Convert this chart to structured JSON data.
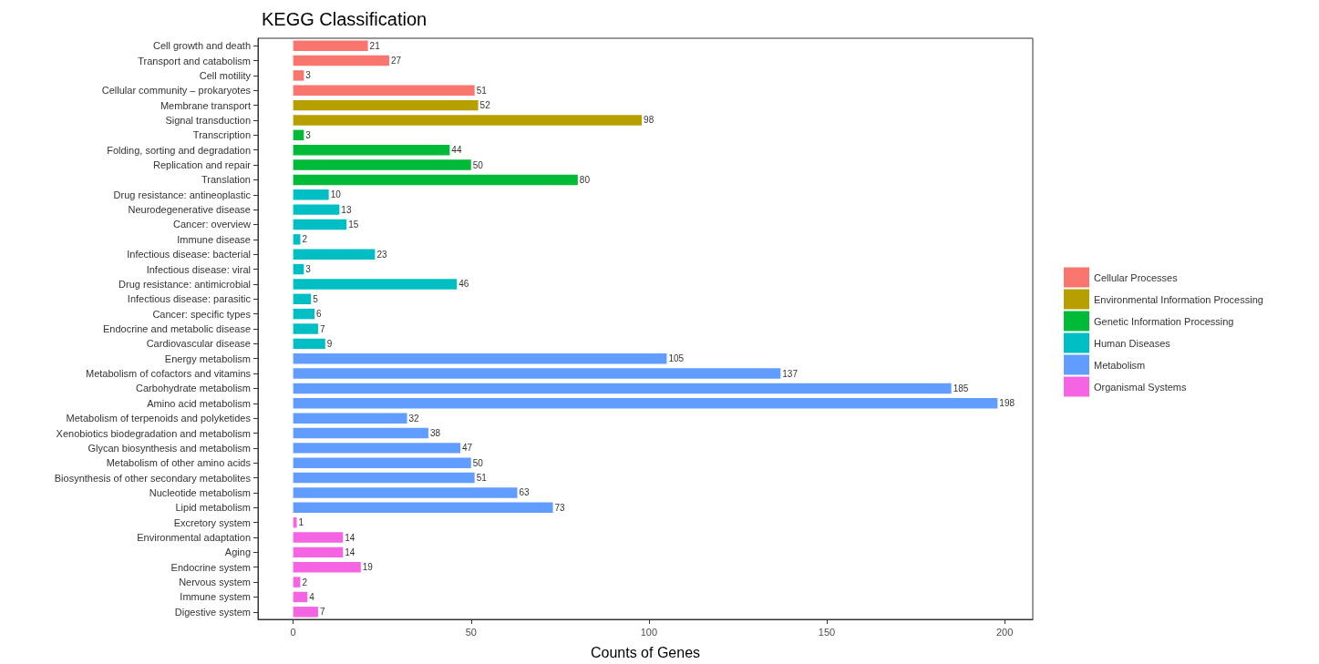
{
  "chart_data": {
    "type": "bar",
    "orientation": "horizontal",
    "title": "KEGG Classification",
    "xlabel": "Counts of Genes",
    "categories": [
      "Cell growth and death",
      "Transport and catabolism",
      "Cell motility",
      "Cellular community – prokaryotes",
      "Membrane transport",
      "Signal transduction",
      "Transcription",
      "Folding, sorting and degradation",
      "Replication and repair",
      "Translation",
      "Drug resistance: antineoplastic",
      "Neurodegenerative disease",
      "Cancer: overview",
      "Immune disease",
      "Infectious disease: bacterial",
      "Infectious disease: viral",
      "Drug resistance: antimicrobial",
      "Infectious disease: parasitic",
      "Cancer: specific types",
      "Endocrine and metabolic disease",
      "Cardiovascular disease",
      "Energy metabolism",
      "Metabolism of cofactors and vitamins",
      "Carbohydrate metabolism",
      "Amino acid metabolism",
      "Metabolism of terpenoids and polyketides",
      "Xenobiotics biodegradation and metabolism",
      "Glycan biosynthesis and metabolism",
      "Metabolism of other amino acids",
      "Biosynthesis of other secondary metabolites",
      "Nucleotide metabolism",
      "Lipid metabolism",
      "Excretory system",
      "Environmental adaptation",
      "Aging",
      "Endocrine system",
      "Nervous system",
      "Immune system",
      "Digestive system"
    ],
    "series": [
      {
        "name": "Cellular Processes",
        "color": "#f8766d",
        "values": [
          21,
          27,
          3,
          51,
          null,
          null,
          null,
          null,
          null,
          null,
          null,
          null,
          null,
          null,
          null,
          null,
          null,
          null,
          null,
          null,
          null,
          null,
          null,
          null,
          null,
          null,
          null,
          null,
          null,
          null,
          null,
          null,
          null,
          null,
          null,
          null,
          null,
          null,
          null
        ]
      },
      {
        "name": "Environmental Information Processing",
        "color": "#b79f00",
        "values": [
          null,
          null,
          null,
          null,
          52,
          98,
          null,
          null,
          null,
          null,
          null,
          null,
          null,
          null,
          null,
          null,
          null,
          null,
          null,
          null,
          null,
          null,
          null,
          null,
          null,
          null,
          null,
          null,
          null,
          null,
          null,
          null,
          null,
          null,
          null,
          null,
          null,
          null,
          null
        ]
      },
      {
        "name": "Genetic Information Processing",
        "color": "#00ba38",
        "values": [
          null,
          null,
          null,
          null,
          null,
          null,
          3,
          44,
          50,
          80,
          null,
          null,
          null,
          null,
          null,
          null,
          null,
          null,
          null,
          null,
          null,
          null,
          null,
          null,
          null,
          null,
          null,
          null,
          null,
          null,
          null,
          null,
          null,
          null,
          null,
          null,
          null,
          null,
          null
        ]
      },
      {
        "name": "Human Diseases",
        "color": "#00bfc4",
        "values": [
          null,
          null,
          null,
          null,
          null,
          null,
          null,
          null,
          null,
          null,
          10,
          13,
          15,
          2,
          23,
          3,
          46,
          5,
          6,
          7,
          9,
          null,
          null,
          null,
          null,
          null,
          null,
          null,
          null,
          null,
          null,
          null,
          null,
          null,
          null,
          null,
          null,
          null,
          null
        ]
      },
      {
        "name": "Metabolism",
        "color": "#619cff",
        "values": [
          null,
          null,
          null,
          null,
          null,
          null,
          null,
          null,
          null,
          null,
          null,
          null,
          null,
          null,
          null,
          null,
          null,
          null,
          null,
          null,
          null,
          105,
          137,
          185,
          198,
          32,
          38,
          47,
          50,
          51,
          63,
          73,
          null,
          null,
          null,
          null,
          null,
          null,
          null
        ]
      },
      {
        "name": "Organismal Systems",
        "color": "#f564e3",
        "values": [
          null,
          null,
          null,
          null,
          null,
          null,
          null,
          null,
          null,
          null,
          null,
          null,
          null,
          null,
          null,
          null,
          null,
          null,
          null,
          null,
          null,
          null,
          null,
          null,
          null,
          null,
          null,
          null,
          null,
          null,
          null,
          null,
          1,
          14,
          14,
          19,
          2,
          4,
          7
        ]
      }
    ],
    "xlim": [
      -9.9,
      207.9
    ],
    "xticks": [
      0,
      50,
      100,
      150,
      200
    ],
    "grid": false,
    "legend": "right",
    "data_labels": true
  }
}
